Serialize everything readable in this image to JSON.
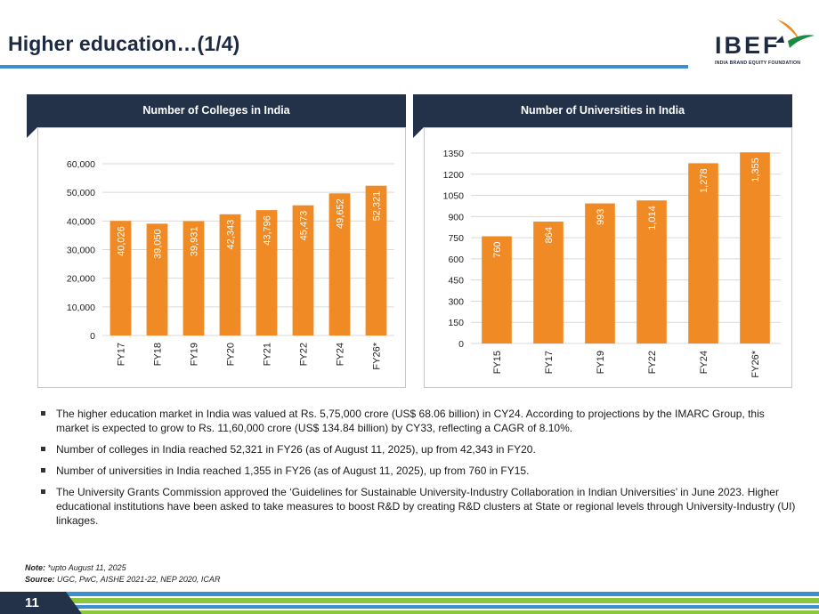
{
  "page": {
    "title": "Higher education…(1/4)",
    "page_number": "11"
  },
  "logo": {
    "name": "IBEF",
    "tagline": "INDIA BRAND EQUITY FOUNDATION"
  },
  "panels": {
    "colleges_title": "Number of Colleges in India",
    "universities_title": "Number of Universities in India"
  },
  "colors": {
    "bar": "#f08a24",
    "header_navy": "#233249",
    "accent_blue": "#3b8ed0",
    "footer_green": "#8cc63f"
  },
  "chart_data": [
    {
      "type": "bar",
      "title": "Number of Colleges in India",
      "categories": [
        "FY17",
        "FY18",
        "FY19",
        "FY20",
        "FY21",
        "FY22",
        "FY24",
        "FY26*"
      ],
      "values": [
        40026,
        39050,
        39931,
        42343,
        43796,
        45473,
        49652,
        52321
      ],
      "value_labels": [
        "40,026",
        "39,050",
        "39,931",
        "42,343",
        "43,796",
        "45,473",
        "49,652",
        "52,321"
      ],
      "yticks": [
        "0",
        "10,000",
        "20,000",
        "30,000",
        "40,000",
        "50,000",
        "60,000"
      ],
      "ylim": [
        0,
        60000
      ],
      "grid": true,
      "xlabel": "",
      "ylabel": ""
    },
    {
      "type": "bar",
      "title": "Number of Universities in India",
      "categories": [
        "FY15",
        "FY17",
        "FY19",
        "FY22",
        "FY24",
        "FY26*"
      ],
      "values": [
        760,
        864,
        993,
        1014,
        1278,
        1355
      ],
      "value_labels": [
        "760",
        "864",
        "993",
        "1,014",
        "1,278",
        "1,355"
      ],
      "yticks": [
        "0",
        "150",
        "300",
        "450",
        "600",
        "750",
        "900",
        "1050",
        "1200",
        "1350"
      ],
      "ylim": [
        0,
        1350
      ],
      "grid": true,
      "xlabel": "",
      "ylabel": ""
    }
  ],
  "bullets": [
    "The higher education market in India was valued at Rs. 5,75,000 crore (US$ 68.06 billion) in CY24. According to projections by the IMARC Group, this market is expected to grow to Rs. 11,60,000 crore (US$ 134.84 billion) by CY33, reflecting a CAGR of 8.10%.",
    "Number of colleges in India reached 52,321 in FY26 (as of August 11, 2025), up from 42,343 in FY20.",
    "Number of universities in India reached 1,355 in FY26 (as of August 11, 2025), up from 760 in FY15.",
    "The University Grants Commission approved the ‘Guidelines for Sustainable University-Industry Collaboration in Indian Universities’ in June 2023. Higher educational institutions have been asked to take measures to boost R&D by creating R&D clusters at State or regional levels through University-Industry (UI) linkages."
  ],
  "footnotes": {
    "note_label": "Note:",
    "note_text": "*upto August 11, 2025",
    "source_label": "Source:",
    "source_text": "UGC, PwC, AISHE 2021-22, NEP 2020, ICAR"
  }
}
